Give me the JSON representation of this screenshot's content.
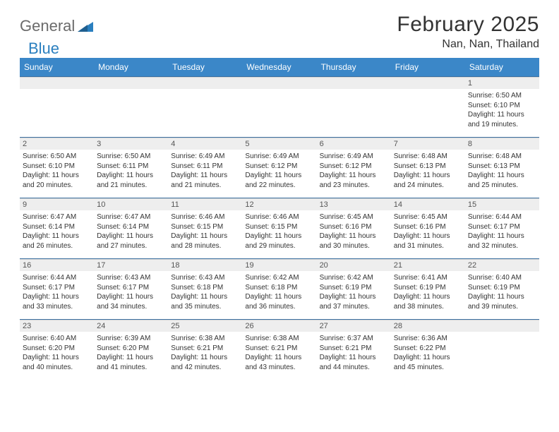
{
  "brand": {
    "part1": "General",
    "part2": "Blue"
  },
  "title": "February 2025",
  "location": "Nan, Nan, Thailand",
  "colors": {
    "header_bg": "#3b87c8",
    "header_text": "#ffffff",
    "row_divider": "#3b6fa0",
    "daynum_bg": "#eeeeee",
    "brand_gray": "#6b6b6b",
    "brand_blue": "#2a7fbf"
  },
  "weekdays": [
    "Sunday",
    "Monday",
    "Tuesday",
    "Wednesday",
    "Thursday",
    "Friday",
    "Saturday"
  ],
  "weeks": [
    [
      {
        "n": "",
        "lines": []
      },
      {
        "n": "",
        "lines": []
      },
      {
        "n": "",
        "lines": []
      },
      {
        "n": "",
        "lines": []
      },
      {
        "n": "",
        "lines": []
      },
      {
        "n": "",
        "lines": []
      },
      {
        "n": "1",
        "lines": [
          "Sunrise: 6:50 AM",
          "Sunset: 6:10 PM",
          "Daylight: 11 hours and 19 minutes."
        ]
      }
    ],
    [
      {
        "n": "2",
        "lines": [
          "Sunrise: 6:50 AM",
          "Sunset: 6:10 PM",
          "Daylight: 11 hours and 20 minutes."
        ]
      },
      {
        "n": "3",
        "lines": [
          "Sunrise: 6:50 AM",
          "Sunset: 6:11 PM",
          "Daylight: 11 hours and 21 minutes."
        ]
      },
      {
        "n": "4",
        "lines": [
          "Sunrise: 6:49 AM",
          "Sunset: 6:11 PM",
          "Daylight: 11 hours and 21 minutes."
        ]
      },
      {
        "n": "5",
        "lines": [
          "Sunrise: 6:49 AM",
          "Sunset: 6:12 PM",
          "Daylight: 11 hours and 22 minutes."
        ]
      },
      {
        "n": "6",
        "lines": [
          "Sunrise: 6:49 AM",
          "Sunset: 6:12 PM",
          "Daylight: 11 hours and 23 minutes."
        ]
      },
      {
        "n": "7",
        "lines": [
          "Sunrise: 6:48 AM",
          "Sunset: 6:13 PM",
          "Daylight: 11 hours and 24 minutes."
        ]
      },
      {
        "n": "8",
        "lines": [
          "Sunrise: 6:48 AM",
          "Sunset: 6:13 PM",
          "Daylight: 11 hours and 25 minutes."
        ]
      }
    ],
    [
      {
        "n": "9",
        "lines": [
          "Sunrise: 6:47 AM",
          "Sunset: 6:14 PM",
          "Daylight: 11 hours and 26 minutes."
        ]
      },
      {
        "n": "10",
        "lines": [
          "Sunrise: 6:47 AM",
          "Sunset: 6:14 PM",
          "Daylight: 11 hours and 27 minutes."
        ]
      },
      {
        "n": "11",
        "lines": [
          "Sunrise: 6:46 AM",
          "Sunset: 6:15 PM",
          "Daylight: 11 hours and 28 minutes."
        ]
      },
      {
        "n": "12",
        "lines": [
          "Sunrise: 6:46 AM",
          "Sunset: 6:15 PM",
          "Daylight: 11 hours and 29 minutes."
        ]
      },
      {
        "n": "13",
        "lines": [
          "Sunrise: 6:45 AM",
          "Sunset: 6:16 PM",
          "Daylight: 11 hours and 30 minutes."
        ]
      },
      {
        "n": "14",
        "lines": [
          "Sunrise: 6:45 AM",
          "Sunset: 6:16 PM",
          "Daylight: 11 hours and 31 minutes."
        ]
      },
      {
        "n": "15",
        "lines": [
          "Sunrise: 6:44 AM",
          "Sunset: 6:17 PM",
          "Daylight: 11 hours and 32 minutes."
        ]
      }
    ],
    [
      {
        "n": "16",
        "lines": [
          "Sunrise: 6:44 AM",
          "Sunset: 6:17 PM",
          "Daylight: 11 hours and 33 minutes."
        ]
      },
      {
        "n": "17",
        "lines": [
          "Sunrise: 6:43 AM",
          "Sunset: 6:17 PM",
          "Daylight: 11 hours and 34 minutes."
        ]
      },
      {
        "n": "18",
        "lines": [
          "Sunrise: 6:43 AM",
          "Sunset: 6:18 PM",
          "Daylight: 11 hours and 35 minutes."
        ]
      },
      {
        "n": "19",
        "lines": [
          "Sunrise: 6:42 AM",
          "Sunset: 6:18 PM",
          "Daylight: 11 hours and 36 minutes."
        ]
      },
      {
        "n": "20",
        "lines": [
          "Sunrise: 6:42 AM",
          "Sunset: 6:19 PM",
          "Daylight: 11 hours and 37 minutes."
        ]
      },
      {
        "n": "21",
        "lines": [
          "Sunrise: 6:41 AM",
          "Sunset: 6:19 PM",
          "Daylight: 11 hours and 38 minutes."
        ]
      },
      {
        "n": "22",
        "lines": [
          "Sunrise: 6:40 AM",
          "Sunset: 6:19 PM",
          "Daylight: 11 hours and 39 minutes."
        ]
      }
    ],
    [
      {
        "n": "23",
        "lines": [
          "Sunrise: 6:40 AM",
          "Sunset: 6:20 PM",
          "Daylight: 11 hours and 40 minutes."
        ]
      },
      {
        "n": "24",
        "lines": [
          "Sunrise: 6:39 AM",
          "Sunset: 6:20 PM",
          "Daylight: 11 hours and 41 minutes."
        ]
      },
      {
        "n": "25",
        "lines": [
          "Sunrise: 6:38 AM",
          "Sunset: 6:21 PM",
          "Daylight: 11 hours and 42 minutes."
        ]
      },
      {
        "n": "26",
        "lines": [
          "Sunrise: 6:38 AM",
          "Sunset: 6:21 PM",
          "Daylight: 11 hours and 43 minutes."
        ]
      },
      {
        "n": "27",
        "lines": [
          "Sunrise: 6:37 AM",
          "Sunset: 6:21 PM",
          "Daylight: 11 hours and 44 minutes."
        ]
      },
      {
        "n": "28",
        "lines": [
          "Sunrise: 6:36 AM",
          "Sunset: 6:22 PM",
          "Daylight: 11 hours and 45 minutes."
        ]
      },
      {
        "n": "",
        "lines": []
      }
    ]
  ]
}
